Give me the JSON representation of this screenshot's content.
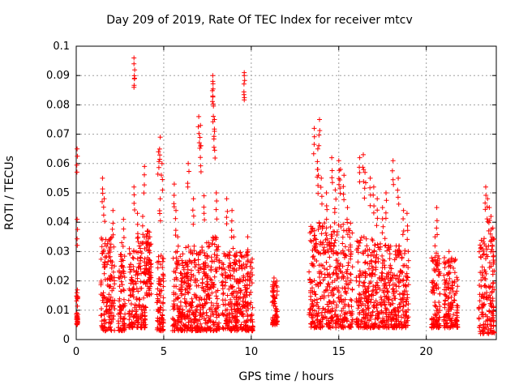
{
  "chart_data": {
    "type": "scatter",
    "title": "Day 209 of 2019, Rate Of TEC Index for receiver mtcv",
    "xlabel": "GPS time / hours",
    "ylabel": "ROTI / TECUs",
    "xlim": [
      0,
      24
    ],
    "ylim": [
      0,
      0.1
    ],
    "x_ticks": [
      "0",
      "5",
      "10",
      "15",
      "20"
    ],
    "y_ticks": [
      "0",
      "0.01",
      "0.02",
      "0.03",
      "0.04",
      "0.05",
      "0.06",
      "0.07",
      "0.08",
      "0.09",
      "0.1"
    ],
    "grid": true,
    "marker": "+",
    "color": "#ff0000",
    "clusters": [
      {
        "x": [
          0.0,
          0.1
        ],
        "y": [
          0.005,
          0.017
        ],
        "peak": [
          [
            0.05,
            0.065
          ],
          [
            0.05,
            0.041
          ]
        ]
      },
      {
        "x": [
          1.4,
          2.2
        ],
        "y": [
          0.003,
          0.035
        ],
        "peak": [
          [
            1.5,
            0.055
          ],
          [
            1.6,
            0.048
          ],
          [
            2.1,
            0.044
          ]
        ]
      },
      {
        "x": [
          2.4,
          2.8
        ],
        "y": [
          0.003,
          0.03
        ],
        "peak": [
          [
            2.6,
            0.033
          ],
          [
            2.7,
            0.041
          ]
        ]
      },
      {
        "x": [
          3.0,
          4.0
        ],
        "y": [
          0.004,
          0.035
        ],
        "peak": [
          [
            3.3,
            0.096
          ],
          [
            3.3,
            0.094
          ],
          [
            3.3,
            0.052
          ],
          [
            3.5,
            0.043
          ],
          [
            3.8,
            0.042
          ],
          [
            3.9,
            0.059
          ]
        ]
      },
      {
        "x": [
          4.0,
          4.3
        ],
        "y": [
          0.015,
          0.038
        ],
        "peak": [
          [
            4.1,
            0.037
          ],
          [
            4.2,
            0.035
          ]
        ]
      },
      {
        "x": [
          4.6,
          5.0
        ],
        "y": [
          0.003,
          0.03
        ],
        "peak": [
          [
            4.7,
            0.064
          ],
          [
            4.8,
            0.069
          ],
          [
            4.9,
            0.06
          ],
          [
            4.8,
            0.048
          ]
        ]
      },
      {
        "x": [
          5.5,
          6.2
        ],
        "y": [
          0.003,
          0.03
        ],
        "peak": [
          [
            5.6,
            0.053
          ],
          [
            5.7,
            0.044
          ],
          [
            5.8,
            0.035
          ]
        ]
      },
      {
        "x": [
          6.2,
          7.4
        ],
        "y": [
          0.003,
          0.032
        ],
        "peak": [
          [
            6.4,
            0.06
          ],
          [
            6.7,
            0.048
          ],
          [
            7.0,
            0.076
          ],
          [
            7.1,
            0.073
          ],
          [
            7.1,
            0.066
          ],
          [
            7.3,
            0.049
          ]
        ]
      },
      {
        "x": [
          7.4,
          8.2
        ],
        "y": [
          0.003,
          0.035
        ],
        "peak": [
          [
            7.8,
            0.09
          ],
          [
            7.8,
            0.088
          ],
          [
            7.8,
            0.083
          ],
          [
            7.9,
            0.075
          ],
          [
            7.9,
            0.071
          ],
          [
            8.0,
            0.05
          ]
        ]
      },
      {
        "x": [
          8.3,
          9.2
        ],
        "y": [
          0.003,
          0.03
        ],
        "peak": [
          [
            8.6,
            0.048
          ],
          [
            8.9,
            0.044
          ],
          [
            9.0,
            0.035
          ]
        ]
      },
      {
        "x": [
          9.2,
          10.1
        ],
        "y": [
          0.003,
          0.03
        ],
        "peak": [
          [
            9.6,
            0.09
          ],
          [
            9.6,
            0.091
          ],
          [
            9.8,
            0.035
          ]
        ]
      },
      {
        "x": [
          11.2,
          11.5
        ],
        "y": [
          0.005,
          0.02
        ],
        "peak": [
          [
            11.3,
            0.021
          ]
        ]
      },
      {
        "x": [
          13.3,
          14.4
        ],
        "y": [
          0.004,
          0.04
        ],
        "peak": [
          [
            13.6,
            0.072
          ],
          [
            13.8,
            0.065
          ],
          [
            13.9,
            0.075
          ],
          [
            13.8,
            0.058
          ],
          [
            14.0,
            0.055
          ],
          [
            14.3,
            0.05
          ]
        ]
      },
      {
        "x": [
          14.4,
          15.8
        ],
        "y": [
          0.004,
          0.04
        ],
        "peak": [
          [
            14.6,
            0.062
          ],
          [
            15.0,
            0.061
          ],
          [
            15.1,
            0.058
          ],
          [
            15.3,
            0.056
          ],
          [
            14.8,
            0.051
          ],
          [
            15.5,
            0.045
          ]
        ]
      },
      {
        "x": [
          16.0,
          16.6
        ],
        "y": [
          0.004,
          0.035
        ],
        "peak": [
          [
            16.2,
            0.062
          ],
          [
            16.4,
            0.063
          ],
          [
            16.5,
            0.057
          ]
        ]
      },
      {
        "x": [
          16.6,
          17.8
        ],
        "y": [
          0.004,
          0.035
        ],
        "peak": [
          [
            16.8,
            0.055
          ],
          [
            17.0,
            0.052
          ],
          [
            17.2,
            0.048
          ],
          [
            17.5,
            0.045
          ],
          [
            17.7,
            0.05
          ]
        ]
      },
      {
        "x": [
          17.8,
          19.0
        ],
        "y": [
          0.004,
          0.032
        ],
        "peak": [
          [
            18.1,
            0.061
          ],
          [
            18.4,
            0.055
          ],
          [
            18.7,
            0.044
          ],
          [
            18.9,
            0.043
          ]
        ]
      },
      {
        "x": [
          20.3,
          20.8
        ],
        "y": [
          0.004,
          0.03
        ],
        "peak": [
          [
            20.6,
            0.045
          ],
          [
            20.5,
            0.035
          ]
        ]
      },
      {
        "x": [
          21.0,
          21.8
        ],
        "y": [
          0.004,
          0.028
        ],
        "peak": [
          [
            21.3,
            0.03
          ]
        ]
      },
      {
        "x": [
          23.0,
          23.9
        ],
        "y": [
          0.002,
          0.035
        ],
        "peak": [
          [
            23.4,
            0.052
          ],
          [
            23.5,
            0.048
          ],
          [
            23.6,
            0.045
          ],
          [
            23.7,
            0.042
          ],
          [
            23.8,
            0.038
          ]
        ]
      }
    ]
  }
}
